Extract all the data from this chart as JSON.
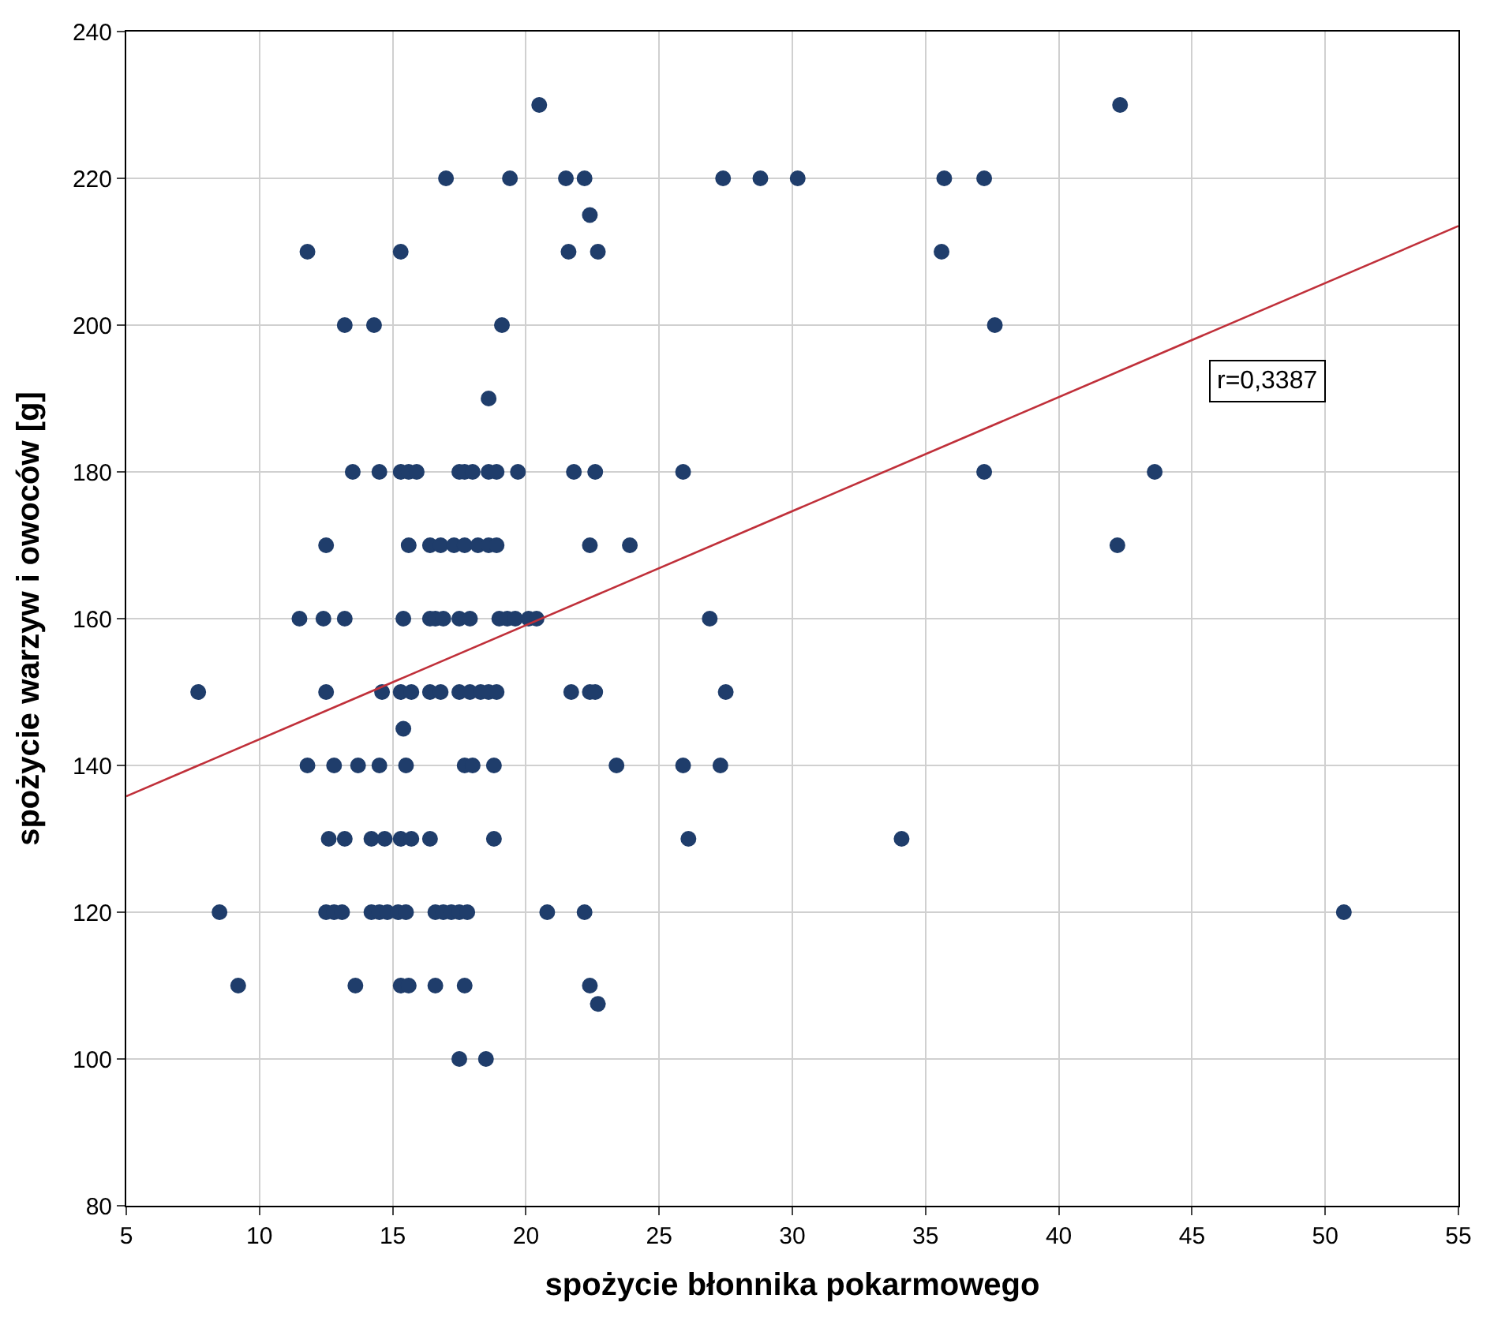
{
  "chart_data": {
    "type": "scatter",
    "xlabel": "spożycie błonnika pokarmowego",
    "ylabel": "spożycie warzyw i owoców [g]",
    "xlim": [
      5,
      55
    ],
    "ylim": [
      80,
      240
    ],
    "xticks": [
      5,
      10,
      15,
      20,
      25,
      30,
      35,
      40,
      45,
      50,
      55
    ],
    "yticks": [
      80,
      100,
      120,
      140,
      160,
      180,
      200,
      220,
      240
    ],
    "grid": true,
    "annotations": [
      "r=0,3387"
    ],
    "series": [
      {
        "marker": "circle",
        "color": "#1f3d6b",
        "x": [
          20.5,
          42.3,
          17.0,
          19.4,
          21.5,
          22.2,
          27.4,
          28.8,
          30.2,
          35.7,
          37.2,
          22.4,
          11.8,
          15.3,
          21.6,
          22.7,
          35.6,
          13.2,
          14.3,
          19.1,
          37.6,
          18.6,
          13.5,
          14.5,
          15.3,
          15.6,
          15.9,
          17.5,
          17.7,
          18.0,
          18.6,
          18.9,
          19.7,
          21.8,
          22.6,
          25.9,
          37.2,
          43.6,
          12.5,
          15.6,
          16.4,
          16.8,
          17.3,
          17.7,
          18.2,
          18.6,
          18.9,
          22.4,
          23.9,
          42.2,
          11.5,
          12.4,
          13.2,
          15.4,
          16.4,
          16.6,
          16.9,
          17.5,
          17.9,
          19.0,
          19.3,
          19.6,
          20.1,
          20.4,
          26.9,
          7.7,
          12.5,
          14.6,
          15.3,
          15.7,
          16.4,
          16.8,
          17.5,
          17.9,
          18.3,
          18.6,
          18.9,
          21.7,
          22.4,
          22.6,
          27.5,
          15.4,
          11.8,
          12.8,
          13.7,
          14.5,
          15.5,
          17.7,
          18.0,
          18.8,
          23.4,
          25.9,
          27.3,
          12.6,
          13.2,
          14.2,
          14.7,
          15.3,
          15.7,
          16.4,
          18.8,
          26.1,
          34.1,
          8.5,
          12.5,
          12.8,
          13.1,
          14.2,
          14.5,
          14.8,
          15.2,
          15.5,
          16.6,
          16.9,
          17.2,
          17.5,
          17.8,
          20.8,
          22.2,
          50.7,
          9.2,
          13.6,
          15.3,
          15.6,
          16.6,
          17.7,
          22.4,
          22.7,
          17.5,
          18.5
        ],
        "values": [
          230,
          230,
          220,
          220,
          220,
          220,
          220,
          220,
          220,
          220,
          220,
          215,
          210,
          210,
          210,
          210,
          210,
          200,
          200,
          200,
          200,
          190,
          180,
          180,
          180,
          180,
          180,
          180,
          180,
          180,
          180,
          180,
          180,
          180,
          180,
          180,
          180,
          180,
          170,
          170,
          170,
          170,
          170,
          170,
          170,
          170,
          170,
          170,
          170,
          170,
          160,
          160,
          160,
          160,
          160,
          160,
          160,
          160,
          160,
          160,
          160,
          160,
          160,
          160,
          160,
          150,
          150,
          150,
          150,
          150,
          150,
          150,
          150,
          150,
          150,
          150,
          150,
          150,
          150,
          150,
          150,
          145,
          140,
          140,
          140,
          140,
          140,
          140,
          140,
          140,
          140,
          140,
          140,
          130,
          130,
          130,
          130,
          130,
          130,
          130,
          130,
          130,
          130,
          120,
          120,
          120,
          120,
          120,
          120,
          120,
          120,
          120,
          120,
          120,
          120,
          120,
          120,
          120,
          120,
          120,
          110,
          110,
          110,
          110,
          110,
          110,
          110,
          107.5,
          100,
          100
        ]
      },
      {
        "type": "line",
        "marker": "none",
        "color": "#c0303a",
        "line_style": "solid",
        "x": [
          5,
          55
        ],
        "values": [
          135.8,
          213.5
        ]
      }
    ]
  }
}
